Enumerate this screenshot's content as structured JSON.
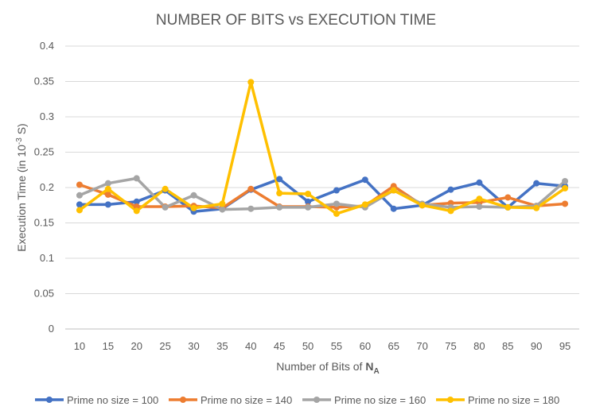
{
  "chart_data": {
    "type": "line",
    "title": "NUMBER OF BITS vs EXECUTION TIME",
    "xlabel_main": "Number of Bits of ",
    "xlabel_var": "N",
    "xlabel_sub": "A",
    "ylabel_main": "Execution Time (in 10",
    "ylabel_sup": "-3",
    "ylabel_end": " S)",
    "ylim": [
      0,
      0.4
    ],
    "y_ticks": [
      "0",
      "0.05",
      "0.1",
      "0.15",
      "0.2",
      "0.25",
      "0.3",
      "0.35",
      "0.4"
    ],
    "categories": [
      "10",
      "15",
      "20",
      "25",
      "30",
      "35",
      "40",
      "45",
      "50",
      "55",
      "60",
      "65",
      "70",
      "75",
      "80",
      "85",
      "90",
      "95"
    ],
    "legend_position": "bottom",
    "series": [
      {
        "name": "Prime no size = 100",
        "color": "#4472C4",
        "values": [
          0.176,
          0.176,
          0.18,
          0.196,
          0.166,
          0.17,
          0.197,
          0.212,
          0.18,
          0.196,
          0.211,
          0.17,
          0.175,
          0.197,
          0.207,
          0.172,
          0.206,
          0.202
        ]
      },
      {
        "name": "Prime no size = 140",
        "color": "#ED7D31",
        "values": [
          0.204,
          0.19,
          0.173,
          0.173,
          0.174,
          0.171,
          0.198,
          0.173,
          0.173,
          0.172,
          0.174,
          0.202,
          0.175,
          0.178,
          0.179,
          0.186,
          0.174,
          0.177
        ]
      },
      {
        "name": "Prime no size = 160",
        "color": "#A5A5A5",
        "values": [
          0.189,
          0.206,
          0.213,
          0.172,
          0.189,
          0.169,
          0.17,
          0.172,
          0.172,
          0.177,
          0.172,
          0.196,
          0.177,
          0.172,
          0.173,
          0.172,
          0.174,
          0.209
        ]
      },
      {
        "name": "Prime no size = 180",
        "color": "#FFC000",
        "values": [
          0.168,
          0.198,
          0.167,
          0.198,
          0.171,
          0.177,
          0.349,
          0.192,
          0.191,
          0.163,
          0.176,
          0.196,
          0.175,
          0.167,
          0.184,
          0.172,
          0.171,
          0.199
        ]
      }
    ]
  }
}
